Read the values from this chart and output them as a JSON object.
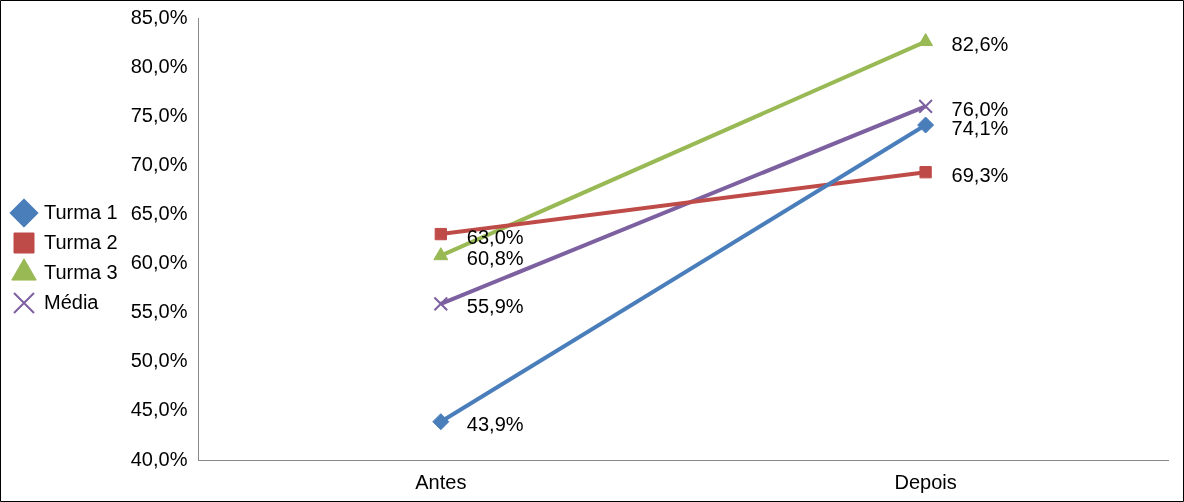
{
  "chart_data": {
    "type": "line",
    "categories": [
      "Antes",
      "Depois"
    ],
    "series": [
      {
        "name": "Turma 1",
        "color": "#4a7ebb",
        "marker": "diamond",
        "values": [
          43.9,
          74.1
        ],
        "value_labels": [
          "43,9%",
          "74,1%"
        ]
      },
      {
        "name": "Turma 2",
        "color": "#be4b48",
        "marker": "square",
        "values": [
          63.0,
          69.3
        ],
        "value_labels": [
          "63,0%",
          "69,3%"
        ]
      },
      {
        "name": "Turma 3",
        "color": "#98b954",
        "marker": "triangle",
        "values": [
          60.8,
          82.6
        ],
        "value_labels": [
          "60,8%",
          "82,6%"
        ]
      },
      {
        "name": "Média",
        "color": "#7d60a0",
        "marker": "cross",
        "values": [
          55.9,
          76.0
        ],
        "value_labels": [
          "55,9%",
          "76,0%"
        ]
      }
    ],
    "ylim": [
      40,
      85
    ],
    "yticks": [
      {
        "value": 40,
        "label": "40,0%"
      },
      {
        "value": 45,
        "label": "45,0%"
      },
      {
        "value": 50,
        "label": "50,0%"
      },
      {
        "value": 55,
        "label": "55,0%"
      },
      {
        "value": 60,
        "label": "60,0%"
      },
      {
        "value": 65,
        "label": "65,0%"
      },
      {
        "value": 70,
        "label": "70,0%"
      },
      {
        "value": 75,
        "label": "75,0%"
      },
      {
        "value": 80,
        "label": "80,0%"
      },
      {
        "value": 85,
        "label": "85,0%"
      }
    ],
    "grid": false,
    "legend": "left",
    "line_style": "solid"
  }
}
